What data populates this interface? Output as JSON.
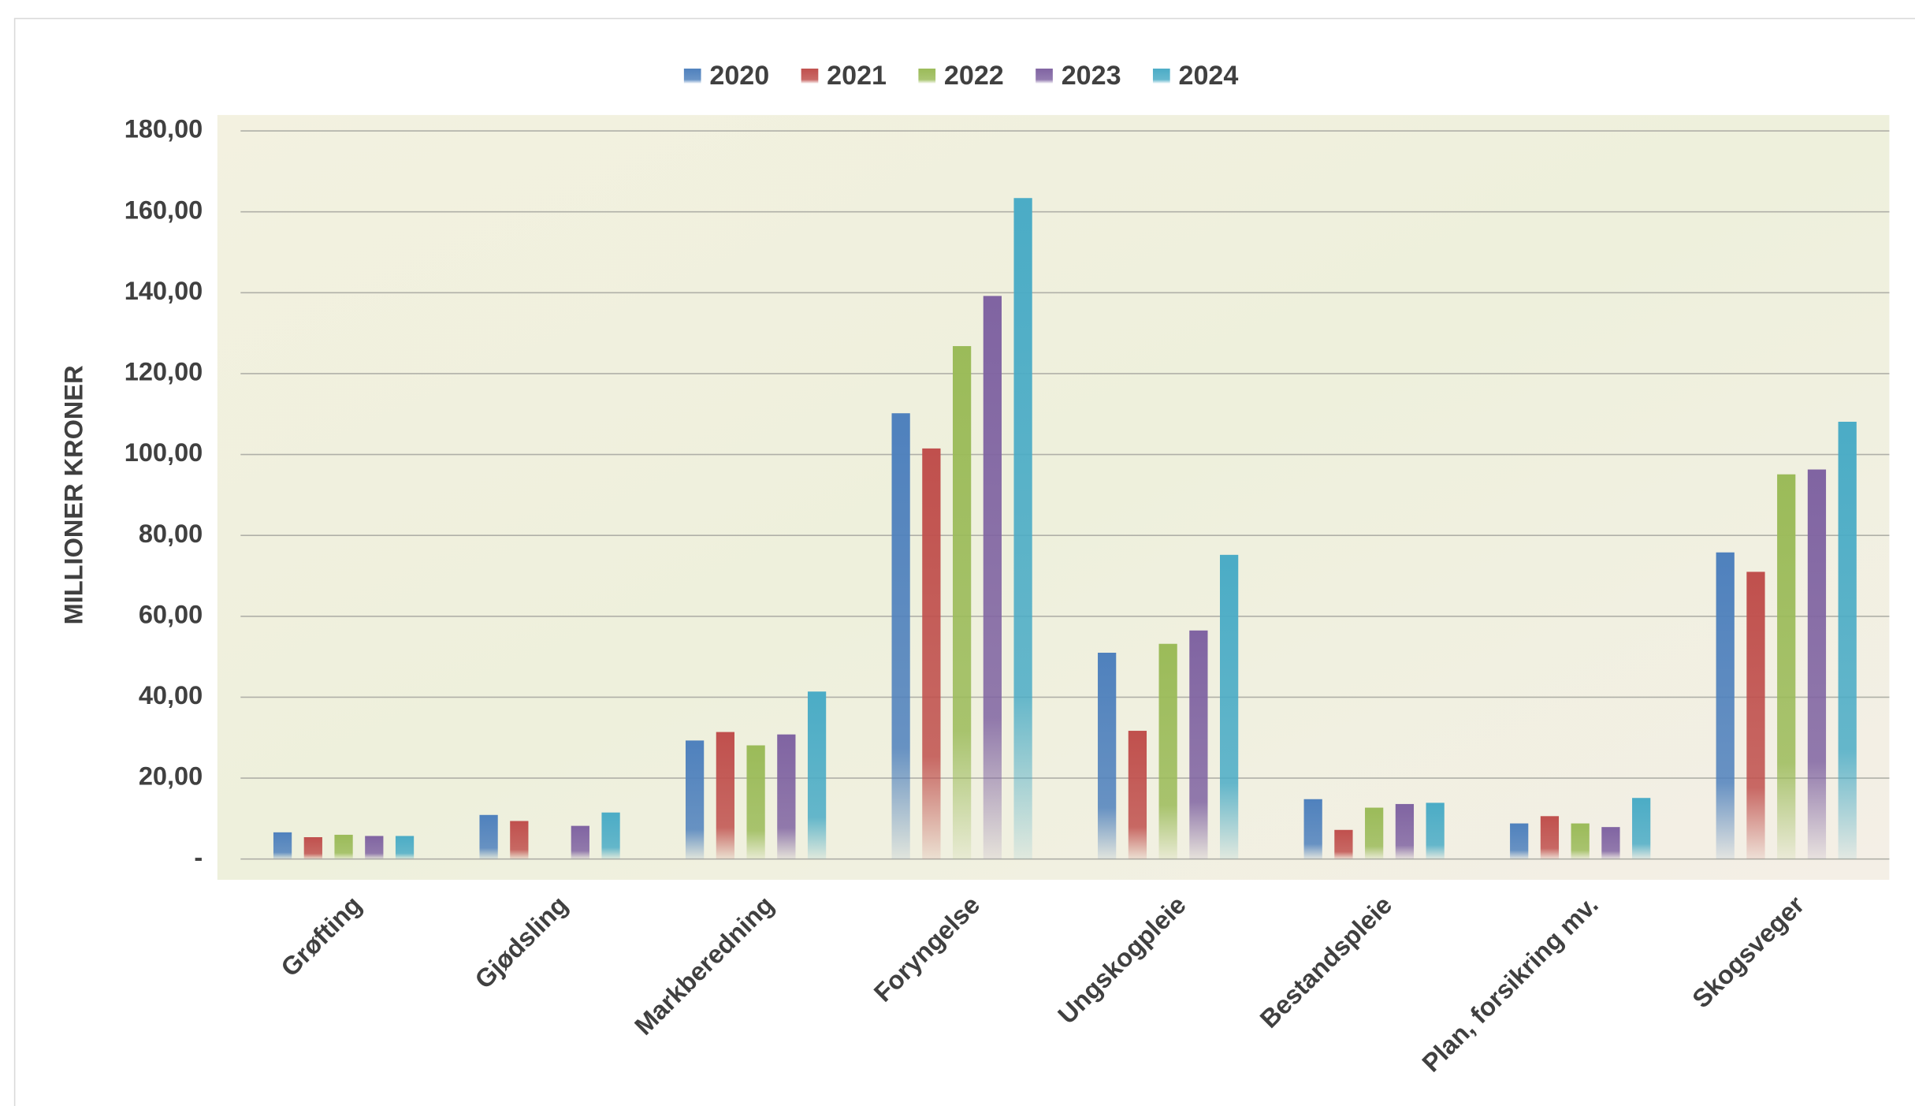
{
  "chart_data": {
    "type": "bar",
    "y_label": "MILLIONER KRONER",
    "categories": [
      "Grøfting",
      "Gjødsling",
      "Markberedning",
      "Foryngelse",
      "Ungskogpleie",
      "Bestandspleie",
      "Plan, forsikring mv.",
      "Skogsveger"
    ],
    "series": [
      {
        "name": "2020",
        "color": "#4f81bd",
        "values": [
          6.6,
          10.9,
          29.3,
          110.2,
          51.0,
          14.8,
          8.8,
          75.8
        ]
      },
      {
        "name": "2021",
        "color": "#c0504d",
        "values": [
          5.4,
          9.4,
          31.4,
          101.5,
          31.7,
          7.2,
          10.6,
          71.0
        ]
      },
      {
        "name": "2022",
        "color": "#9bbb59",
        "values": [
          6.0,
          null,
          28.1,
          126.8,
          53.2,
          12.7,
          8.8,
          95.1
        ]
      },
      {
        "name": "2023",
        "color": "#8064a2",
        "values": [
          5.7,
          8.2,
          30.8,
          139.2,
          56.5,
          13.6,
          7.9,
          96.3
        ]
      },
      {
        "name": "2024",
        "color": "#4bacc6",
        "values": [
          5.7,
          11.5,
          41.4,
          163.4,
          75.2,
          13.9,
          15.1,
          108.1
        ]
      }
    ],
    "ylim": [
      0,
      180
    ],
    "yticks": [
      {
        "value": 0,
        "label": "-"
      },
      {
        "value": 20,
        "label": "20,00"
      },
      {
        "value": 40,
        "label": "40,00"
      },
      {
        "value": 60,
        "label": "60,00"
      },
      {
        "value": 80,
        "label": "80,00"
      },
      {
        "value": 100,
        "label": "100,00"
      },
      {
        "value": 120,
        "label": "120,00"
      },
      {
        "value": 140,
        "label": "140,00"
      },
      {
        "value": 160,
        "label": "160,00"
      },
      {
        "value": 180,
        "label": "180,00"
      }
    ],
    "grid": true,
    "legend": "top"
  }
}
